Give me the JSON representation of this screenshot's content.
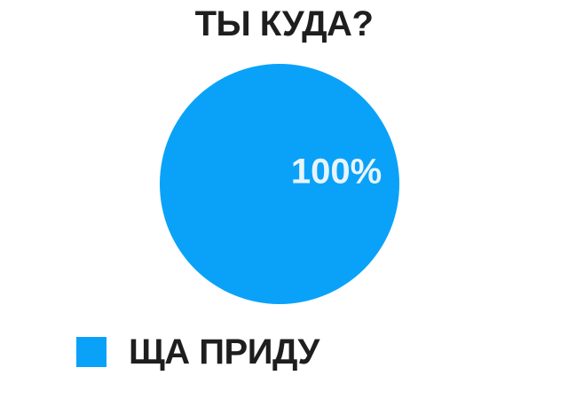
{
  "theme": {
    "background": "#ffffff",
    "pie-color": "#0aa2f8",
    "title-color": "#1e1e1e",
    "legend-text-color": "#1e1e1e",
    "slice-label-color": "#e8f4fc"
  },
  "chart_data": {
    "type": "pie",
    "title": "ТЫ КУДА?",
    "categories": [
      "ЩА ПРИДУ"
    ],
    "values": [
      100
    ],
    "series": [
      {
        "label": "ЩА ПРИДУ",
        "value": 100,
        "percent_label": "100%",
        "color": "#0aa2f8"
      }
    ],
    "legend": [
      {
        "label": "ЩА ПРИДУ",
        "color": "#0aa2f8"
      }
    ],
    "legend_position": "bottom-left",
    "total": 100,
    "grid": false,
    "axes": false
  }
}
